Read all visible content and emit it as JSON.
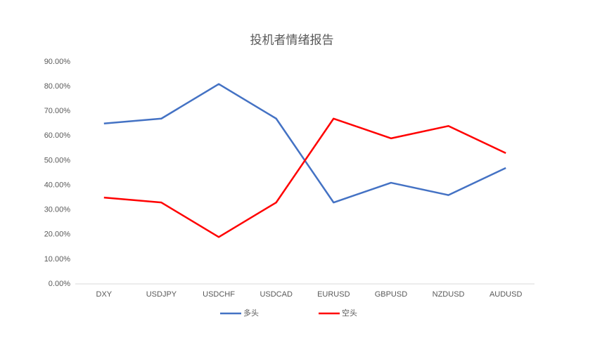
{
  "chart_data": {
    "type": "line",
    "title": "投机者情绪报告",
    "categories": [
      "DXY",
      "USDJPY",
      "USDCHF",
      "USDCAD",
      "EURUSD",
      "GBPUSD",
      "NZDUSD",
      "AUDUSD"
    ],
    "series": [
      {
        "name": "多头",
        "color": "#4472c4",
        "values": [
          65,
          67,
          81,
          67,
          33,
          41,
          36,
          47
        ]
      },
      {
        "name": "空头",
        "color": "#ff0000",
        "values": [
          35,
          33,
          19,
          33,
          67,
          59,
          64,
          53
        ]
      }
    ],
    "ylim": [
      0,
      90
    ],
    "yticks": [
      {
        "value": 0,
        "label": "0.00%"
      },
      {
        "value": 10,
        "label": "10.00%"
      },
      {
        "value": 20,
        "label": "20.00%"
      },
      {
        "value": 30,
        "label": "30.00%"
      },
      {
        "value": 40,
        "label": "40.00%"
      },
      {
        "value": 50,
        "label": "50.00%"
      },
      {
        "value": 60,
        "label": "60.00%"
      },
      {
        "value": 70,
        "label": "70.00%"
      },
      {
        "value": 80,
        "label": "80.00%"
      },
      {
        "value": 90,
        "label": "90.00%"
      }
    ],
    "grid": false,
    "legend": "bottom"
  }
}
